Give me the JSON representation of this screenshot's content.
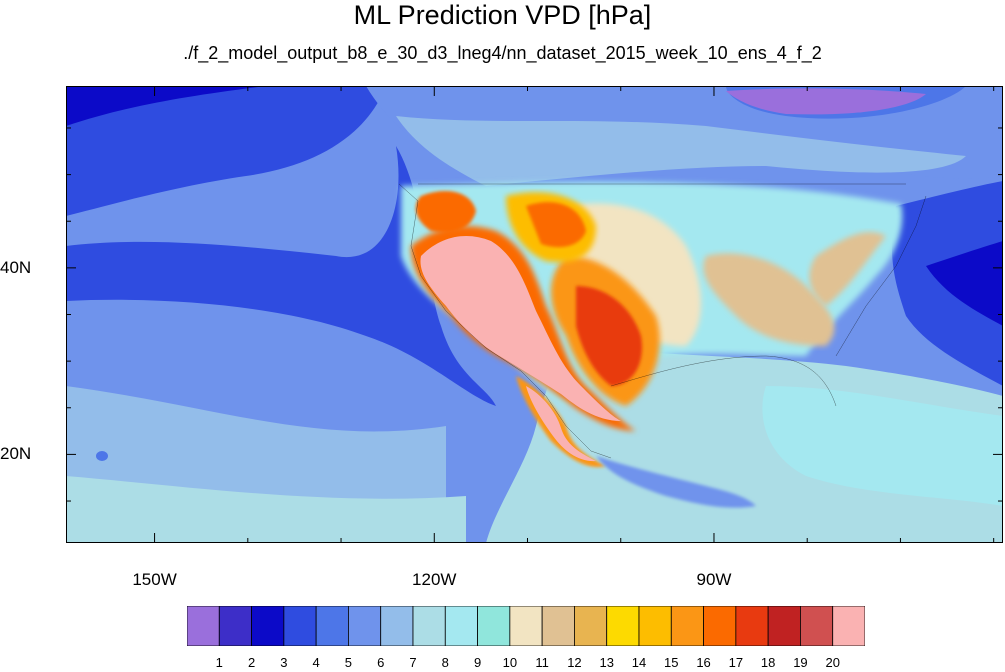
{
  "chart_data": {
    "type": "heatmap",
    "title": "ML Prediction VPD [hPa]",
    "subtitle": "./f_2_model_output_b8_e_30_d3_lneg4/nn_dataset_2015_week_10_ens_4_f_2",
    "x_axis": {
      "ticks": [
        {
          "value": -150,
          "label": "150W"
        },
        {
          "value": -120,
          "label": "120W"
        },
        {
          "value": -90,
          "label": "90W"
        }
      ]
    },
    "y_axis": {
      "ticks": [
        {
          "value": 40,
          "label": "40N"
        },
        {
          "value": 20,
          "label": "20N"
        }
      ]
    },
    "colorbar": {
      "labels": [
        "1",
        "2",
        "3",
        "4",
        "5",
        "6",
        "7",
        "8",
        "9",
        "10",
        "11",
        "12",
        "13",
        "14",
        "15",
        "16",
        "17",
        "18",
        "19",
        "20"
      ],
      "colors": [
        "#9a6fdc",
        "#3d2ec8",
        "#0c0ac8",
        "#2f4ce0",
        "#4d76e8",
        "#6f93ec",
        "#93bdea",
        "#acdde6",
        "#a4e8f0",
        "#90e6dc",
        "#f2e4c2",
        "#e0c193",
        "#e8b450",
        "#fdda00",
        "#fdbd00",
        "#fb9615",
        "#fb6a00",
        "#e83a10",
        "#c02222",
        "#d05050",
        "#fab2b2"
      ]
    }
  }
}
